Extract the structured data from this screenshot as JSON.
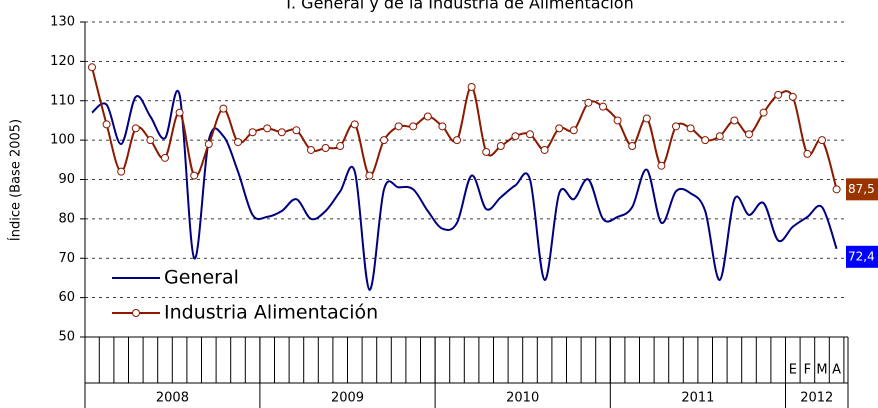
{
  "chart_data": {
    "type": "line",
    "title": "I. General y de la Industria de Alimentación",
    "y_label": "Índice (Base 2005)",
    "categories": [
      null,
      null,
      null,
      null,
      null,
      null,
      null,
      null,
      null,
      null,
      null,
      null,
      null,
      null,
      null,
      null,
      null,
      null,
      null,
      null,
      null,
      null,
      null,
      null,
      null,
      null,
      null,
      null,
      null,
      null,
      null,
      null,
      null,
      null,
      null,
      null,
      null,
      null,
      null,
      null,
      null,
      null,
      null,
      null,
      null,
      null,
      null,
      null,
      "E",
      "F",
      "M",
      "A"
    ],
    "years": [
      "2008",
      "2009",
      "2010",
      "2011",
      "2012"
    ],
    "ylim": [
      50,
      130
    ],
    "yticks": [
      50,
      60,
      70,
      80,
      90,
      100,
      110,
      120,
      130
    ],
    "grid": true,
    "legend": "lower left",
    "series": [
      {
        "name": "General",
        "color": "#000080",
        "markers": false,
        "values": [
          107,
          109,
          99,
          111,
          106,
          100.5,
          111.5,
          70,
          100,
          101,
          92,
          81,
          80.5,
          82,
          85,
          80,
          82,
          87,
          92,
          62,
          87.5,
          88,
          87.5,
          82,
          77.5,
          79,
          91,
          82.5,
          85.5,
          88.5,
          90,
          64.5,
          86.5,
          85,
          90,
          80,
          80.5,
          83,
          92.5,
          79,
          87,
          86.5,
          82,
          64.5,
          85,
          81,
          84,
          74.5,
          78,
          80.5,
          83,
          72.4
        ],
        "value_labels": [
          null,
          null,
          null,
          null,
          null,
          null,
          null,
          null,
          null,
          null,
          null,
          null,
          null,
          null,
          null,
          null,
          null,
          null,
          null,
          null,
          null,
          null,
          null,
          null,
          null,
          null,
          null,
          null,
          null,
          null,
          null,
          null,
          null,
          null,
          null,
          null,
          null,
          null,
          null,
          null,
          null,
          null,
          null,
          null,
          null,
          null,
          null,
          null,
          null,
          null,
          null,
          "72,4"
        ],
        "label_color": "#0000ff"
      },
      {
        "name": "Industria Alimentación",
        "color": "#8b1a00",
        "markers": true,
        "values": [
          118.5,
          104,
          92,
          103,
          100,
          95.5,
          107,
          91,
          99,
          108,
          99.5,
          102,
          103,
          102,
          102.5,
          97.5,
          98,
          98.5,
          104,
          91,
          100,
          103.5,
          103.5,
          106,
          103.5,
          100,
          113.5,
          97,
          98.5,
          101,
          101.5,
          97.5,
          103,
          102.5,
          109.5,
          108.5,
          105,
          98.5,
          105.5,
          93.5,
          103.5,
          103,
          100,
          101,
          105,
          101.5,
          107,
          111.5,
          111,
          96.5,
          100,
          87.5
        ],
        "value_labels": [
          null,
          null,
          null,
          null,
          null,
          null,
          null,
          null,
          null,
          null,
          null,
          null,
          null,
          null,
          null,
          null,
          null,
          null,
          null,
          null,
          null,
          null,
          null,
          null,
          null,
          null,
          null,
          null,
          null,
          null,
          null,
          null,
          null,
          null,
          null,
          null,
          null,
          null,
          null,
          null,
          null,
          null,
          null,
          null,
          null,
          null,
          null,
          null,
          null,
          null,
          null,
          "87,5"
        ],
        "label_color": "#993300"
      }
    ]
  }
}
